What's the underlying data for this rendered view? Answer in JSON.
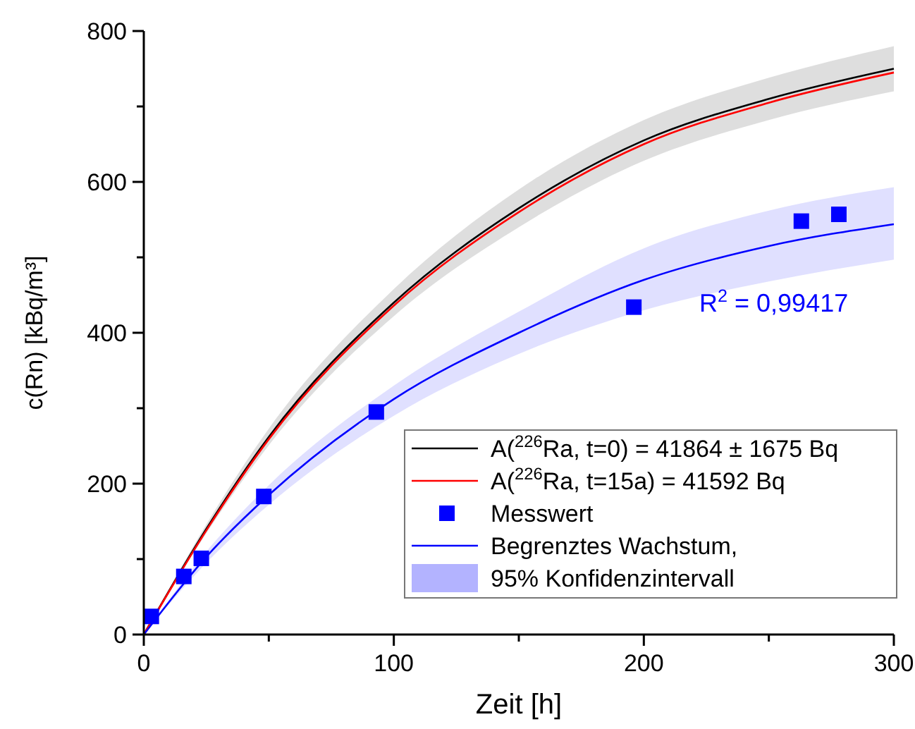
{
  "chart_data": {
    "type": "line",
    "xlabel": "Zeit [h]",
    "ylabel": "c(Rn) [kBq/m³]",
    "x": [
      0,
      25,
      50,
      100,
      150,
      200,
      250,
      300
    ],
    "xlim": [
      0,
      300
    ],
    "xticks": [
      0,
      {
        "value": 50,
        "label": null
      },
      100,
      {
        "value": 150,
        "label": null
      },
      200,
      {
        "value": 250,
        "label": null
      },
      300
    ],
    "ylim": [
      0,
      800
    ],
    "yticks": [
      0,
      {
        "value": 100,
        "label": null
      },
      200,
      {
        "value": 300,
        "label": null
      },
      400,
      {
        "value": 500,
        "label": null
      },
      600,
      {
        "value": 700,
        "label": null
      },
      800
    ],
    "grid": false,
    "legend": "bottom right",
    "line_style": "solid",
    "annotations": [
      "R$^{2}$ = 0,99417"
    ],
    "series": [
      {
        "name": "A($^{226}$Ra, t=0) = 41864 ± 1675 Bq",
        "color": "#000000",
        "values": [
          0,
          140,
          262,
          440,
          565,
          655,
          710,
          750
        ],
        "lower": [
          0,
          134,
          251,
          422,
          540,
          628,
          682,
          720
        ],
        "upper": [
          0,
          146,
          273,
          458,
          590,
          682,
          738,
          780
        ]
      },
      {
        "name": "A($^{226}$Ra, t=15a) = 41592 Bq",
        "color": "#ff0000",
        "values": [
          0,
          138,
          259,
          436,
          560,
          650,
          705,
          745
        ]
      },
      {
        "name": "Messwert",
        "type": "scatter",
        "marker": "square",
        "color": "#0000ff",
        "x": [
          3,
          16,
          23,
          48,
          93,
          196,
          263,
          278
        ],
        "values": [
          24,
          77,
          101,
          183,
          295,
          434,
          548,
          557
        ]
      },
      {
        "name": "Begrenztes Wachstum, 95% Konfidenzintervall",
        "color": "#0000ff",
        "values": [
          0,
          103,
          185,
          312,
          400,
          470,
          515,
          544
        ],
        "lower": [
          0,
          95,
          172,
          290,
          372,
          430,
          468,
          497
        ],
        "upper": [
          0,
          110,
          198,
          330,
          428,
          512,
          562,
          593
        ]
      }
    ]
  }
}
